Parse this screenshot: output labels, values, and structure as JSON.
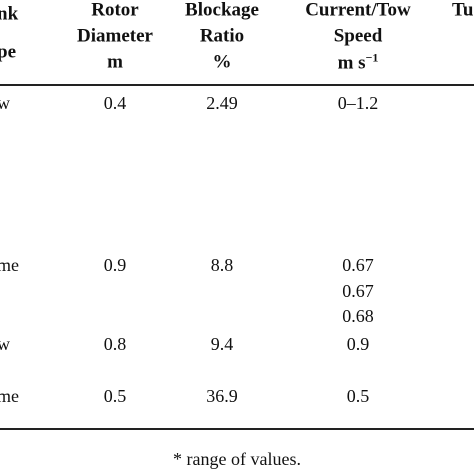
{
  "table": {
    "header": [
      [
        "nk",
        "pe"
      ],
      [
        "Rotor",
        "Diameter",
        "m"
      ],
      [
        "Blockage",
        "Ratio",
        "%"
      ],
      [
        "Current/Tow",
        "Speed",
        {
          "base": "m s",
          "sup": "−1"
        }
      ],
      [
        "Tu"
      ]
    ],
    "rows": [
      [
        "w",
        "0.4",
        "2.49",
        [
          "0–1.2"
        ]
      ],
      [
        "me",
        "0.9",
        "8.8",
        [
          "0.67",
          "0.67",
          "0.68"
        ]
      ],
      [
        "w",
        "0.8",
        "9.4",
        [
          "0.9"
        ]
      ],
      [
        "me",
        "0.5",
        "36.9",
        [
          "0.5"
        ]
      ]
    ]
  },
  "footnote": "* range of values."
}
